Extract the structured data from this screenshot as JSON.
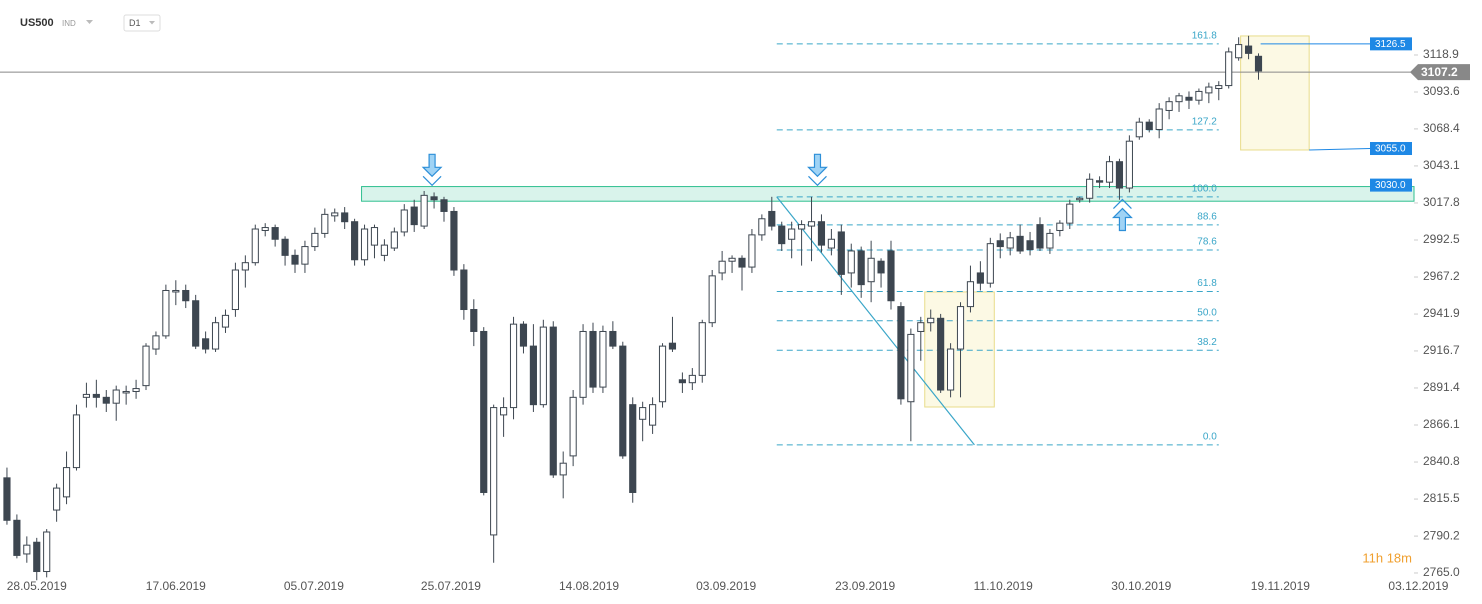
{
  "chart_data": {
    "type": "candlestick",
    "symbol": "US500",
    "instrument_type": "IND",
    "interval": "D1",
    "timer": "11h 18m",
    "colors": {
      "up": "#ffffff",
      "down": "#3d4650",
      "outline": "#3d4650",
      "fib": "#3aa6c8",
      "zone": "#2fbf8f",
      "box": "#e8dc8a",
      "tag": "#1e88e5"
    },
    "ylim": [
      2760,
      3140
    ],
    "yticks": [
      {
        "value": 2765,
        "label": "2765.0"
      },
      2790.2,
      2815.5,
      2840.8,
      2866.1,
      2891.4,
      2916.7,
      2941.9,
      2967.2,
      2992.5,
      3017.8,
      3043.1,
      3068.4,
      3093.6,
      3118.9
    ],
    "xlim": [
      -0.7,
      148.5
    ],
    "xticks": [
      {
        "value": 3,
        "label": "28.05.2019"
      },
      {
        "value": 17,
        "label": "17.06.2019"
      },
      {
        "value": 30.9,
        "label": "05.07.2019"
      },
      {
        "value": 44.7,
        "label": "25.07.2019"
      },
      {
        "value": 58.6,
        "label": "14.08.2019"
      },
      {
        "value": 72.4,
        "label": "03.09.2019"
      },
      {
        "value": 86.4,
        "label": "23.09.2019"
      },
      {
        "value": 100.3,
        "label": "11.10.2019"
      },
      {
        "value": 114.2,
        "label": "30.10.2019"
      },
      {
        "value": 128.2,
        "label": "19.11.2019"
      },
      {
        "value": 142.1,
        "label": "03.12.2019"
      }
    ],
    "current_price": 3107.2,
    "price_tags": [
      3126.5,
      {
        "value": 3055,
        "label": "3055.0"
      },
      {
        "value": 3030,
        "label": "3030.0"
      }
    ],
    "fib_levels": [
      {
        "ratio": "161.8",
        "price": 3126.5
      },
      {
        "ratio": "127.2",
        "price": 3067.7
      },
      {
        "ratio": "100.0",
        "price": 3022
      },
      {
        "ratio": "88.6",
        "price": 3002.8
      },
      {
        "ratio": "78.6",
        "price": 2985.7
      },
      {
        "ratio": "61.8",
        "price": 2957.3
      },
      {
        "ratio": "50.0",
        "price": 2937.3
      },
      {
        "ratio": "38.2",
        "price": 2917.2
      },
      {
        "ratio": "0.0",
        "price": 2852.5
      }
    ],
    "fib_span": [
      77.5,
      122
    ],
    "zone": {
      "low": 3019,
      "high": 3029,
      "from": 35.7
    },
    "boxes": [
      {
        "low": 3054,
        "high": 3131.9,
        "from": 124.2,
        "to": 131.1
      },
      {
        "low": 2878.4,
        "high": 2957,
        "from": 92.4,
        "to": 99.4
      }
    ],
    "trend_line": {
      "from": 77.5,
      "to": 97.4,
      "start": 3022,
      "end": 2852.5
    },
    "arrows": [
      {
        "at": 42.8,
        "price": 3036,
        "direction": "down"
      },
      {
        "at": 81.6,
        "price": 3036,
        "direction": "down"
      },
      {
        "at": 112.3,
        "price": 3014,
        "direction": "up"
      }
    ],
    "candles": [
      [
        2830,
        2837,
        2798,
        2801
      ],
      [
        2801,
        2805,
        2775,
        2777
      ],
      [
        2778,
        2790,
        2772,
        2784
      ],
      [
        2786,
        2789,
        2760,
        2766
      ],
      [
        2766,
        2795,
        2762,
        2793
      ],
      [
        2808,
        2826,
        2800,
        2823
      ],
      [
        2817,
        2848,
        2812,
        2837
      ],
      [
        2837,
        2880,
        2835,
        2873
      ],
      [
        2885,
        2895,
        2878,
        2887
      ],
      [
        2887,
        2897,
        2878,
        2885
      ],
      [
        2885,
        2890,
        2875,
        2881
      ],
      [
        2881,
        2893,
        2869,
        2890
      ],
      [
        2888,
        2893,
        2880,
        2889
      ],
      [
        2889,
        2897,
        2884,
        2891
      ],
      [
        2893,
        2922,
        2890,
        2920
      ],
      [
        2918,
        2930,
        2914,
        2927
      ],
      [
        2927,
        2962,
        2925,
        2958
      ],
      [
        2957,
        2965,
        2948,
        2958
      ],
      [
        2958,
        2962,
        2946,
        2951
      ],
      [
        2951,
        2955,
        2918,
        2920
      ],
      [
        2925,
        2930,
        2915,
        2918
      ],
      [
        2918,
        2940,
        2916,
        2936
      ],
      [
        2933,
        2945,
        2929,
        2941
      ],
      [
        2945,
        2977,
        2940,
        2972
      ],
      [
        2972,
        2982,
        2960,
        2977
      ],
      [
        2977,
        3003,
        2975,
        3000
      ],
      [
        2999,
        3004,
        2995,
        3001
      ],
      [
        3001,
        3003,
        2988,
        2993
      ],
      [
        2993,
        2995,
        2975,
        2982
      ],
      [
        2982,
        2986,
        2970,
        2976
      ],
      [
        2976,
        2992,
        2970,
        2988
      ],
      [
        2988,
        3001,
        2985,
        2997
      ],
      [
        2997,
        3014,
        2994,
        3010
      ],
      [
        3009,
        3014,
        3005,
        3011
      ],
      [
        3011,
        3015,
        3000,
        3005
      ],
      [
        3005,
        3007,
        2975,
        2979
      ],
      [
        2979,
        3003,
        2975,
        3000
      ],
      [
        2989,
        3003,
        2980,
        3001
      ],
      [
        2982,
        2993,
        2978,
        2989
      ],
      [
        2987,
        3001,
        2985,
        2998
      ],
      [
        2998,
        3017,
        2995,
        3013
      ],
      [
        3015,
        3020,
        2998,
        3003
      ],
      [
        3002,
        3026,
        3000,
        3023
      ],
      [
        3022,
        3025,
        3014,
        3020
      ],
      [
        3020,
        3022,
        3005,
        3012
      ],
      [
        3012,
        3015,
        2968,
        2972
      ],
      [
        2972,
        2976,
        2938,
        2945
      ],
      [
        2945,
        2952,
        2920,
        2930
      ],
      [
        2930,
        2933,
        2818,
        2820
      ],
      [
        2791,
        2880,
        2772,
        2878
      ],
      [
        2873,
        2885,
        2858,
        2878
      ],
      [
        2878,
        2940,
        2870,
        2935
      ],
      [
        2935,
        2937,
        2915,
        2920
      ],
      [
        2920,
        2935,
        2875,
        2880
      ],
      [
        2880,
        2938,
        2878,
        2933
      ],
      [
        2933,
        2937,
        2830,
        2832
      ],
      [
        2832,
        2848,
        2816,
        2840
      ],
      [
        2845,
        2890,
        2838,
        2885
      ],
      [
        2885,
        2935,
        2880,
        2930
      ],
      [
        2930,
        2936,
        2888,
        2892
      ],
      [
        2892,
        2934,
        2888,
        2930
      ],
      [
        2930,
        2937,
        2918,
        2920
      ],
      [
        2920,
        2923,
        2843,
        2845
      ],
      [
        2880,
        2885,
        2813,
        2820
      ],
      [
        2870,
        2882,
        2855,
        2878
      ],
      [
        2866,
        2885,
        2860,
        2880
      ],
      [
        2882,
        2922,
        2878,
        2920
      ],
      [
        2922,
        2940,
        2916,
        2918
      ],
      [
        2897,
        2902,
        2888,
        2895
      ],
      [
        2895,
        2905,
        2890,
        2900
      ],
      [
        2900,
        2938,
        2895,
        2936
      ],
      [
        2936,
        2972,
        2933,
        2968
      ],
      [
        2970,
        2985,
        2965,
        2978
      ],
      [
        2978,
        2982,
        2970,
        2980
      ],
      [
        2980,
        2982,
        2958,
        2974
      ],
      [
        2974,
        3000,
        2970,
        2996
      ],
      [
        2996,
        3010,
        2992,
        3007
      ],
      [
        3012,
        3022,
        2999,
        3002
      ],
      [
        3002,
        3005,
        2985,
        2990
      ],
      [
        2993,
        3005,
        2980,
        3000
      ],
      [
        3000,
        3006,
        2975,
        3003
      ],
      [
        3002,
        3022,
        2978,
        3005
      ],
      [
        3005,
        3010,
        2984,
        2989
      ],
      [
        2987,
        3000,
        2982,
        2993
      ],
      [
        2998,
        3003,
        2955,
        2969
      ],
      [
        2970,
        2990,
        2960,
        2985
      ],
      [
        2985,
        2988,
        2953,
        2962
      ],
      [
        2964,
        2992,
        2950,
        2980
      ],
      [
        2978,
        2980,
        2960,
        2970
      ],
      [
        2985,
        2992,
        2945,
        2951
      ],
      [
        2947,
        2950,
        2880,
        2884
      ],
      [
        2882,
        2932,
        2855,
        2928
      ],
      [
        2930,
        2940,
        2910,
        2936
      ],
      [
        2936,
        2945,
        2930,
        2939
      ],
      [
        2939,
        2942,
        2888,
        2890
      ],
      [
        2890,
        2922,
        2885,
        2918
      ],
      [
        2918,
        2950,
        2885,
        2947
      ],
      [
        2947,
        2975,
        2943,
        2964
      ],
      [
        2970,
        2978,
        2958,
        2963
      ],
      [
        2963,
        2994,
        2960,
        2990
      ],
      [
        2992,
        2997,
        2980,
        2988
      ],
      [
        2987,
        2998,
        2982,
        2994
      ],
      [
        2995,
        3003,
        2983,
        2985
      ],
      [
        2992,
        2998,
        2982,
        2986
      ],
      [
        3003,
        3008,
        2985,
        2987
      ],
      [
        2987,
        3000,
        2983,
        2997
      ],
      [
        2999,
        3006,
        2995,
        3004
      ],
      [
        3004,
        3020,
        3000,
        3017
      ],
      [
        3020,
        3022,
        3018,
        3021
      ],
      [
        3021,
        3038,
        3018,
        3034
      ],
      [
        3033,
        3036,
        3028,
        3032
      ],
      [
        3032,
        3050,
        3028,
        3046
      ],
      [
        3046,
        3048,
        3020,
        3028
      ],
      [
        3028,
        3064,
        3025,
        3060
      ],
      [
        3063,
        3076,
        3061,
        3073
      ],
      [
        3073,
        3075,
        3066,
        3068
      ],
      [
        3068,
        3086,
        3062,
        3082
      ],
      [
        3081,
        3090,
        3075,
        3087
      ],
      [
        3087,
        3093,
        3080,
        3091
      ],
      [
        3090,
        3094,
        3082,
        3088
      ],
      [
        3088,
        3096,
        3085,
        3094
      ],
      [
        3093,
        3100,
        3086,
        3097
      ],
      [
        3096,
        3101,
        3088,
        3098
      ],
      [
        3098,
        3124,
        3096,
        3121
      ],
      [
        3117,
        3131,
        3115,
        3126
      ],
      [
        3125,
        3132,
        3116,
        3120
      ],
      [
        3118,
        3120,
        3102,
        3108
      ]
    ]
  }
}
